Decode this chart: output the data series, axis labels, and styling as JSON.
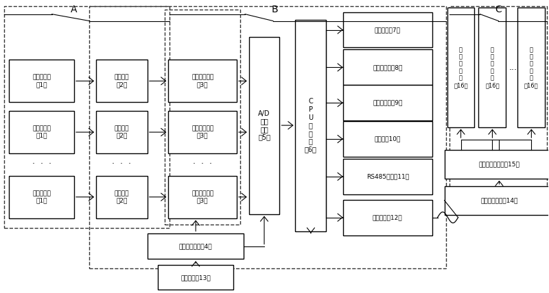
{
  "fig_width": 8.0,
  "fig_height": 4.28,
  "dpi": 100,
  "bg_color": "#ffffff",
  "labels": {
    "sensor": "声波传感器\n（1）",
    "input": "输入接口\n（2）",
    "signal": "信号转换电路\n（3）",
    "power": "电源转换电路（4）",
    "ad": "A/D\n转换\n电路\n（5）",
    "cpu": "C\nP\nU\n处\n理\n器\n（6）",
    "clk": "时钟电路（7）",
    "data_mem": "数据存储器（8）",
    "prog_mem": "程序存储器（9）",
    "display": "显示器（10）",
    "rs485": "RS485接口（11）",
    "optical": "光纤接口（12）",
    "explo": "防暴电源（13）",
    "gnd_comm": "地面通讯接口（14）",
    "gnd_mon": "地面监测中心站（15）",
    "terminal": "终\n端\n计\n算\n机\n（16）",
    "dots": "·  ·  ·",
    "A": "A",
    "B": "B",
    "C": "C"
  }
}
